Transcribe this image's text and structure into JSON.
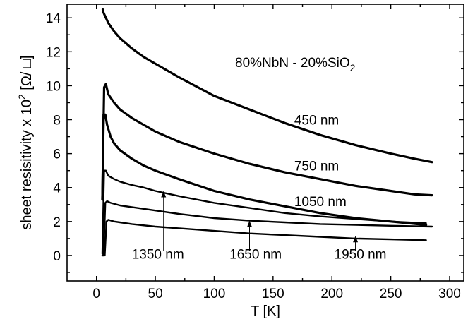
{
  "chart_data": {
    "type": "line",
    "xlabel": "T [K]",
    "ylabel_main": "sheet resisitivity x 10",
    "ylabel_sup": "2",
    "ylabel_unit": " [Ω/ □]",
    "xlim": [
      -25,
      312
    ],
    "ylim": [
      -1.5,
      14.8
    ],
    "xticks": [
      0,
      50,
      100,
      150,
      200,
      250,
      300
    ],
    "yticks": [
      0,
      2,
      4,
      6,
      8,
      10,
      12,
      14
    ],
    "grid": false,
    "legend": "none",
    "annotation_title": {
      "main": "80%NbN - 20%SiO",
      "sub": "2"
    },
    "series": [
      {
        "name": "450 nm",
        "label_x": 168,
        "label_y": 7.7,
        "x": [
          5.3,
          6,
          8,
          10,
          15,
          20,
          30,
          40,
          50,
          70,
          100,
          130,
          160,
          190,
          220,
          250,
          270,
          285
        ],
        "y": [
          14.5,
          14.3,
          14.0,
          13.7,
          13.2,
          12.8,
          12.2,
          11.7,
          11.3,
          10.5,
          9.4,
          8.6,
          7.8,
          7.1,
          6.5,
          6.0,
          5.7,
          5.5
        ]
      },
      {
        "name": "750 nm",
        "label_x": 168,
        "label_y": 5.0,
        "x": [
          5,
          6.5,
          8,
          10,
          15,
          20,
          30,
          40,
          50,
          70,
          100,
          130,
          160,
          190,
          220,
          250,
          270,
          285
        ],
        "y": [
          3.3,
          9.9,
          10.1,
          9.5,
          9.0,
          8.6,
          8.1,
          7.7,
          7.3,
          6.7,
          6.0,
          5.4,
          4.9,
          4.5,
          4.1,
          3.8,
          3.6,
          3.55
        ]
      },
      {
        "name": "1050 nm",
        "label_x": 168,
        "label_y": 2.9,
        "x": [
          5,
          6,
          7.5,
          9,
          12,
          15,
          20,
          30,
          40,
          50,
          70,
          100,
          130,
          160,
          190,
          220,
          250,
          280
        ],
        "y": [
          3.3,
          8.3,
          8.3,
          7.7,
          7.0,
          6.6,
          6.2,
          5.7,
          5.3,
          5.0,
          4.5,
          3.8,
          3.3,
          2.9,
          2.5,
          2.2,
          2.0,
          1.8
        ]
      },
      {
        "name": "1350 nm",
        "label_x": 30,
        "label_y": -0.2,
        "arrow_x": 57,
        "arrow_y_from": 0.25,
        "arrow_y_to": 3.8,
        "x": [
          5,
          6.5,
          8,
          10,
          15,
          20,
          30,
          40,
          50,
          70,
          100,
          130,
          160,
          190,
          220,
          250,
          280
        ],
        "y": [
          0.1,
          5.0,
          5.0,
          4.7,
          4.5,
          4.35,
          4.15,
          4.0,
          3.8,
          3.5,
          3.1,
          2.8,
          2.5,
          2.3,
          2.15,
          2.0,
          1.9
        ]
      },
      {
        "name": "1650 nm",
        "label_x": 113,
        "label_y": -0.2,
        "arrow_x": 130,
        "arrow_y_from": 0.25,
        "arrow_y_to": 2.05,
        "x": [
          5,
          6,
          7.5,
          9,
          12,
          20,
          30,
          50,
          70,
          100,
          130,
          160,
          190,
          220,
          250,
          285
        ],
        "y": [
          0.0,
          0.0,
          3.1,
          3.2,
          3.1,
          2.95,
          2.85,
          2.65,
          2.45,
          2.2,
          2.05,
          1.95,
          1.85,
          1.8,
          1.75,
          1.7
        ]
      },
      {
        "name": "1950 nm",
        "label_x": 202,
        "label_y": -0.2,
        "arrow_x": 220,
        "arrow_y_from": 0.25,
        "arrow_y_to": 1.15,
        "x": [
          5,
          7,
          8.5,
          10,
          15,
          20,
          30,
          50,
          70,
          100,
          130,
          160,
          190,
          220,
          250,
          280
        ],
        "y": [
          0.0,
          0.0,
          2.0,
          2.1,
          2.0,
          1.95,
          1.85,
          1.7,
          1.6,
          1.45,
          1.3,
          1.2,
          1.1,
          1.0,
          0.95,
          0.9
        ]
      }
    ]
  }
}
